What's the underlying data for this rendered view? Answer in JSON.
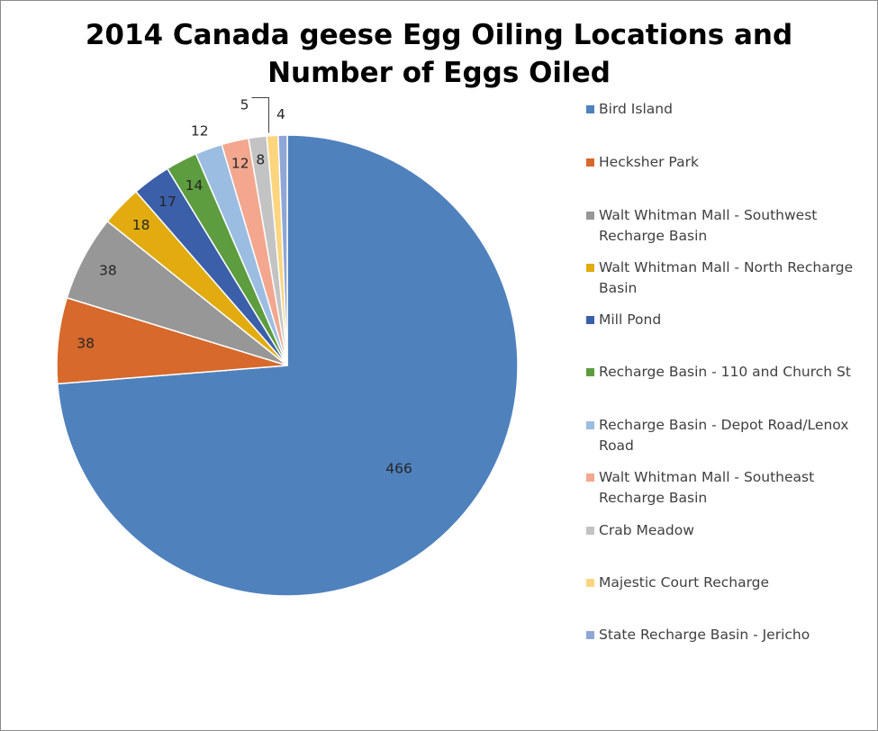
{
  "chart_data": {
    "type": "pie",
    "title": "2014 Canada geese Egg Oiling Locations and Number of Eggs Oiled",
    "title_lines": [
      "2014 Canada geese Egg Oiling Locations and",
      "Number of Eggs Oiled"
    ],
    "start_angle": "12 o'clock, clockwise",
    "legend_position": "right",
    "slices": [
      {
        "label": "Bird Island",
        "value": 466,
        "color": "#4f81bd"
      },
      {
        "label": "Hecksher Park",
        "value": 38,
        "color": "#d6692b"
      },
      {
        "label": "Walt Whitman Mall - Southwest Recharge Basin",
        "value": 38,
        "color": "#979797"
      },
      {
        "label": "Walt Whitman Mall - North Recharge Basin",
        "value": 18,
        "color": "#e2ac10"
      },
      {
        "label": "Mill Pond",
        "value": 17,
        "color": "#3b5fa8"
      },
      {
        "label": "Recharge Basin - 110 and Church St",
        "value": 14,
        "color": "#5d9c3f"
      },
      {
        "label": "Recharge Basin - Depot Road/Lenox Road",
        "value": 12,
        "color": "#9cbde2"
      },
      {
        "label": "Walt Whitman Mall - Southeast Recharge Basin",
        "value": 12,
        "color": "#f2a78e"
      },
      {
        "label": "Crab Meadow",
        "value": 8,
        "color": "#c3c3c3"
      },
      {
        "label": "Majestic Court Recharge",
        "value": 5,
        "color": "#fdd57e"
      },
      {
        "label": "State Recharge Basin - Jericho",
        "value": 4,
        "color": "#8fa6d6"
      }
    ]
  }
}
